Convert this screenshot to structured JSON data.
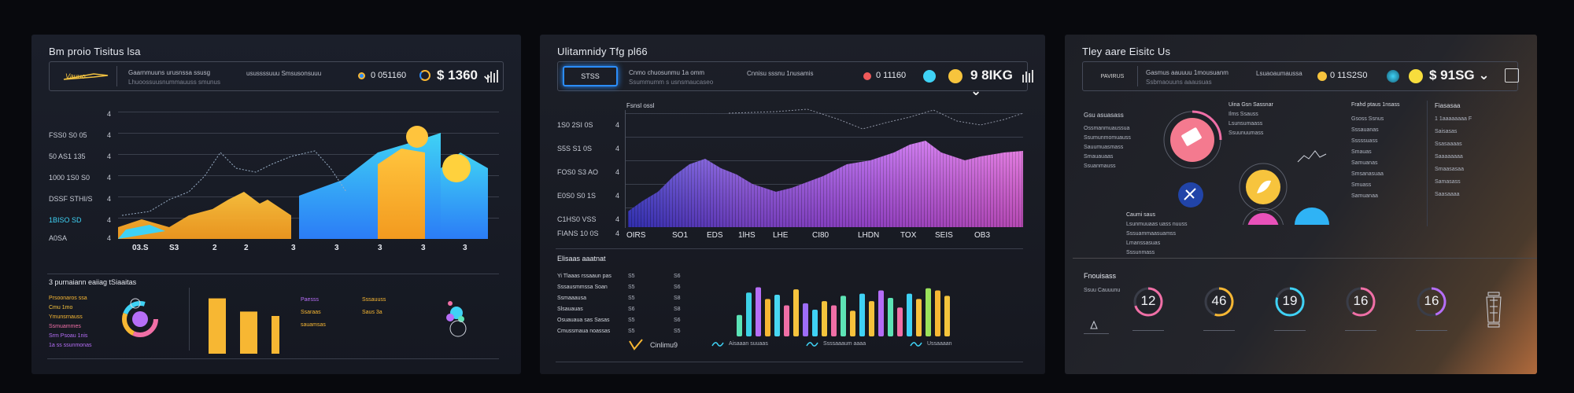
{
  "panel1": {
    "title": "Bm proio Tisitus lsa",
    "header": {
      "logo": "Vauuo",
      "line1": "Gaarnmuuns urusnssa ssusg",
      "line2": "Lhuoossuusnummauuss smunus",
      "line3": "usussssuuu Smsusonsuuu",
      "num": "0 051160",
      "big": "$ 1360 ⌄"
    },
    "yaxis": [
      "FSS0 S0 05",
      "50 AS1 135",
      "1000 1S0 S0",
      "DSSF STHI/S",
      "1BISO SD",
      "A0SA"
    ],
    "ysuffix": [
      "4",
      "4",
      "4",
      "4",
      "4",
      "4",
      "4"
    ],
    "xaxis": [
      "03.S",
      "S3",
      "2",
      "2",
      "3",
      "3",
      "3",
      "3",
      "3"
    ],
    "section_title": "3 purnaiann eaiiag tSiaaitas",
    "legend": [
      "Prsoonaros ssa",
      "Cmu 1mo",
      "Ymunsrnauss",
      "Ssmuammes",
      "Srm Psoau 1nis",
      "1a ss ssunmonas"
    ],
    "mini_labels": [
      "Paesss",
      "Ssaraas",
      "sauamsas",
      "Sssauuss",
      "Saus 3a"
    ],
    "mini_chart_data": {
      "type": "bar",
      "values": [
        88,
        67,
        60
      ]
    },
    "colors": {
      "accent": "#f7b733",
      "cyan": "#3fd2f5",
      "blue": "#2b8dfb"
    }
  },
  "panel2": {
    "title": "Ulitamnidy Tfg pl66",
    "header": {
      "logo": "STSS",
      "line1": "Cnmo chuosunmu 1a omm",
      "line2": "Ssummumm s usnsmaucaseo",
      "line3": "Cnnisu sssnu 1nusamis",
      "num": "0 11160",
      "big": "9 8IKG ⌄"
    },
    "chart_title": "Fsnsl ossl",
    "yaxis": [
      "1S0 2SI 0S",
      "S5S S1 0S",
      "FOS0 S3 AO",
      "E0S0 S0 1S",
      "C1HS0 VSS",
      "FIANS 10 0S"
    ],
    "ysuffix": [
      "4",
      "4",
      "4",
      "4",
      "4",
      "4"
    ],
    "xaxis": [
      "OIRS",
      "SO1",
      "EDS",
      "1lHS",
      "LHE",
      "CI80",
      "LHDN",
      "TOX",
      "SEIS",
      "OB3"
    ],
    "section_title": "Elisaas aaatnat",
    "list_left": [
      "Yi Tlaaas rssaaun pas",
      "Sssausmmssa Soan",
      "Ssmaaausa",
      "Slsauauas",
      "Osuauaua sas Sasas",
      "Cmussmaua noassas"
    ],
    "list_mid": [
      "S5",
      "S5",
      "S5",
      "S6",
      "S5",
      "S5"
    ],
    "list_right": [
      "S6",
      "S6",
      "S8",
      "S8",
      "S6",
      "S5"
    ],
    "footer": [
      "Cinlimu9",
      "Aisaaan suuaas",
      "Ssssaaaum aaaa",
      "Ussaaaan"
    ],
    "bars_chart": {
      "type": "bar",
      "values": [
        40,
        82,
        92,
        70,
        78,
        58,
        88,
        62,
        50,
        66,
        58,
        76,
        48,
        80,
        66,
        86,
        72,
        54,
        80,
        70,
        90,
        86,
        76
      ],
      "colors": [
        "#5be3b6",
        "#3dd1e6",
        "#b66ef7",
        "#f7b733",
        "#48d7f2",
        "#f06fa6",
        "#f7c43d",
        "#9d6dfa",
        "#3fd2f5",
        "#f4c43c",
        "#f06fa6",
        "#5de3b5",
        "#f8c13c",
        "#3fd2f5",
        "#f6c13c",
        "#b46cf6",
        "#5de3b5",
        "#f06fa6",
        "#3fd2f5",
        "#f8c13c",
        "#9be25b",
        "#f7b733",
        "#f4c43c"
      ]
    }
  },
  "panel3": {
    "title": "Tley aare Eisitc Us",
    "header": {
      "logo": "PAVIRUS",
      "line1": "Gasmus aauuuu 1mousuanm",
      "line2": "Ssbmaouuns aaausuas",
      "line3": "Lsuaoaumaussa",
      "num": "0 11S2S0",
      "big": "$ 91SG ⌄"
    },
    "left_title": "Gsu asuasass",
    "left_lines": [
      "Ossmanmuaussua",
      "Ssumunmomuauss",
      "Sauumuasmass",
      "Smauauaas",
      "Ssuanmauss"
    ],
    "mid_top": [
      "Uina Gsn Sassnar",
      "Ilms Ssauss",
      "Lsunsumaass",
      "Ssuunuumass"
    ],
    "mid_bottom": [
      "Caumi saus",
      "Lsunmuuaas uass nuuss",
      "Sssuammaasuamss",
      "Lmanssasuas",
      "Sssunmass"
    ],
    "right_col1_title": "Frahd ptaus 1nsass",
    "right_col1": [
      "Gsoss Ssnus",
      "Sssauanas",
      "Sssssuass",
      "Smauas",
      "Samuanas",
      "Smsanasuaa",
      "Smuass",
      "Samuanaa"
    ],
    "right_col2_title": "Fiasasaa",
    "right_col2": [
      "1 1aaaaaaaa F",
      "Saisasas",
      "Ssasaaaas",
      "Saaaaaaaa",
      "Smaasasaa",
      "Samasass",
      "Saasaaaa"
    ],
    "bottom_title": "Fnouisass",
    "bottom_sub": "Ssuu Cauuunu",
    "gauges": [
      {
        "label": "12",
        "value": 0.7,
        "color": "#f06fa6"
      },
      {
        "label": "46",
        "value": 0.55,
        "color": "#f7b733"
      },
      {
        "label": "19",
        "value": 0.8,
        "color": "#3fd2f5"
      },
      {
        "label": "16",
        "value": 0.6,
        "color": "#f06fa6"
      },
      {
        "label": "16",
        "value": 0.45,
        "color": "#b66ef7"
      }
    ]
  }
}
